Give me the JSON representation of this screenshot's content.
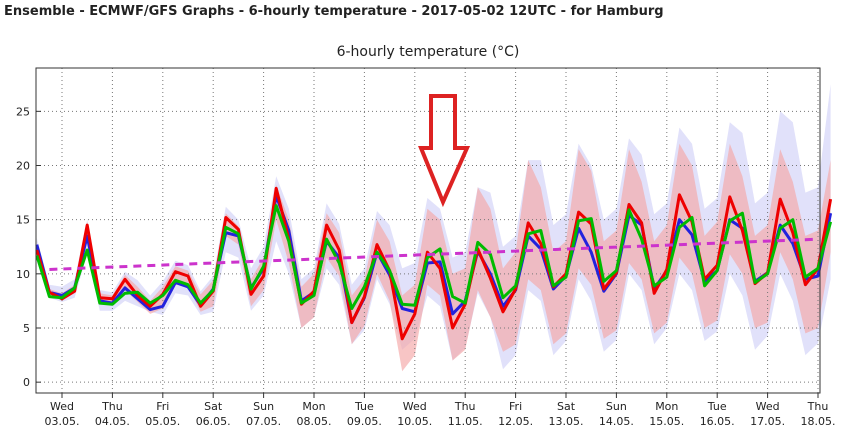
{
  "page": {
    "title": "Ensemble - ECMWF/GFS Graphs - 6-hourly temperature - 2017-05-02 12UTC - for Hamburg"
  },
  "colors": {
    "ecmwf": "#ee0000",
    "gfs": "#00bb00",
    "blue": "#2222dd",
    "climate": "#cc33cc",
    "band_red": "#f4a6a6",
    "band_blue": "#c9c9f5",
    "annotation_arrow": "#dd2222"
  },
  "chart_data": {
    "type": "line",
    "title": "6-hourly temperature (°C)",
    "xlabel": "",
    "ylabel": "",
    "ylim": [
      -1,
      29
    ],
    "yticks": [
      0,
      5,
      10,
      15,
      20,
      25
    ],
    "grid": true,
    "x_day_ticks": [
      {
        "weekday": "Wed",
        "date": "03.05."
      },
      {
        "weekday": "Thu",
        "date": "04.05."
      },
      {
        "weekday": "Fri",
        "date": "05.05."
      },
      {
        "weekday": "Sat",
        "date": "06.05."
      },
      {
        "weekday": "Sun",
        "date": "07.05."
      },
      {
        "weekday": "Mon",
        "date": "08.05."
      },
      {
        "weekday": "Tue",
        "date": "09.05."
      },
      {
        "weekday": "Wed",
        "date": "10.05."
      },
      {
        "weekday": "Thu",
        "date": "11.05."
      },
      {
        "weekday": "Fri",
        "date": "12.05."
      },
      {
        "weekday": "Sat",
        "date": "13.05."
      },
      {
        "weekday": "Sun",
        "date": "14.05."
      },
      {
        "weekday": "Mon",
        "date": "15.05."
      },
      {
        "weekday": "Tue",
        "date": "16.05."
      },
      {
        "weekday": "Wed",
        "date": "17.05."
      },
      {
        "weekday": "Thu",
        "date": "18.05."
      }
    ],
    "x_hours": [
      -12,
      -6,
      0,
      6,
      12,
      18,
      24,
      30,
      36,
      42,
      48,
      54,
      60,
      66,
      72,
      78,
      84,
      90,
      96,
      102,
      108,
      114,
      120,
      126,
      132,
      138,
      144,
      150,
      156,
      162,
      168,
      174,
      180,
      186,
      192,
      198,
      204,
      210,
      216,
      222,
      228,
      234,
      240,
      246,
      252,
      258,
      264,
      270,
      276,
      282,
      288,
      294,
      300,
      306,
      312,
      318,
      324,
      330,
      336,
      342,
      348,
      354,
      360,
      366
    ],
    "x_hours_unit": "hours after Wed 03.05. 00UTC",
    "series": [
      {
        "key": "blue",
        "values": [
          12.7,
          8.3,
          8.0,
          8.7,
          13.5,
          7.5,
          7.3,
          8.7,
          7.7,
          6.7,
          7.0,
          9.2,
          8.8,
          7.1,
          8.6,
          13.8,
          13.5,
          8.7,
          10.5,
          17.2,
          14.0,
          7.5,
          8.3,
          13.0,
          11.5,
          5.5,
          7.8,
          12.0,
          9.9,
          6.8,
          6.5,
          11.0,
          11.1,
          6.3,
          7.5,
          12.1,
          10.0,
          7.0,
          8.5,
          13.5,
          12.3,
          8.6,
          9.8,
          14.2,
          12.0,
          8.4,
          10.0,
          15.4,
          14.5,
          8.6,
          10.3,
          15.0,
          13.6,
          9.3,
          10.3,
          15.0,
          14.2,
          9.3,
          10.1,
          14.5,
          12.8,
          9.5,
          9.8,
          15.6
        ]
      },
      {
        "key": "ecmwf",
        "values": [
          12.2,
          8.3,
          7.7,
          8.4,
          14.5,
          7.8,
          7.7,
          9.5,
          8.0,
          7.0,
          8.1,
          10.2,
          9.8,
          7.0,
          8.4,
          15.2,
          14.1,
          8.1,
          9.8,
          17.9,
          13.2,
          7.2,
          8.4,
          14.5,
          12.2,
          5.5,
          7.9,
          12.7,
          10.3,
          4.0,
          6.3,
          12.0,
          10.5,
          5.0,
          7.2,
          12.3,
          9.6,
          6.5,
          8.6,
          14.7,
          12.8,
          8.8,
          10.0,
          15.7,
          14.6,
          8.6,
          10.1,
          16.4,
          14.7,
          8.2,
          10.4,
          17.3,
          14.8,
          9.5,
          10.8,
          17.1,
          14.0,
          9.1,
          10.1,
          16.9,
          13.8,
          9.0,
          10.5,
          16.9
        ]
      },
      {
        "key": "gfs",
        "values": [
          11.7,
          7.9,
          7.8,
          8.7,
          12.2,
          7.3,
          7.2,
          8.2,
          8.3,
          7.3,
          8.0,
          9.4,
          9.0,
          7.3,
          8.5,
          14.3,
          13.7,
          8.6,
          10.7,
          16.3,
          13.0,
          7.3,
          8.0,
          13.2,
          11.0,
          6.8,
          8.8,
          12.0,
          10.3,
          7.2,
          7.1,
          11.5,
          12.3,
          7.9,
          7.3,
          12.9,
          11.8,
          7.8,
          8.9,
          13.7,
          14.0,
          8.9,
          9.7,
          14.9,
          15.1,
          9.3,
          10.3,
          15.9,
          13.2,
          8.9,
          9.7,
          14.3,
          15.2,
          8.9,
          10.3,
          14.9,
          15.6,
          9.2,
          10.0,
          14.2,
          15.0,
          9.7,
          10.5,
          14.8
        ]
      },
      {
        "key": "climate",
        "values": [
          10.4,
          10.5,
          10.6,
          10.7,
          10.8,
          10.9,
          11.0,
          11.1,
          11.2,
          11.3,
          11.4,
          11.5,
          11.6,
          11.7,
          11.8,
          11.9,
          12.0,
          12.1,
          12.2,
          12.3,
          12.4,
          12.5,
          12.6,
          12.7,
          12.8,
          12.9,
          13.0,
          13.1,
          13.2
        ]
      }
    ],
    "climate_x_range_hours": [
      -6,
      360
    ],
    "bands": [
      {
        "key": "band_blue",
        "low": [
          11.5,
          7.8,
          7.4,
          7.8,
          11.8,
          6.6,
          6.6,
          7.5,
          7.0,
          6.5,
          6.2,
          8.2,
          8.0,
          6.2,
          6.5,
          12.0,
          11.5,
          6.6,
          8.0,
          13.0,
          10.0,
          5.0,
          6.0,
          10.5,
          9.0,
          3.5,
          4.8,
          9.5,
          7.2,
          3.0,
          4.0,
          8.0,
          7.0,
          2.0,
          3.2,
          8.2,
          6.0,
          1.2,
          2.5,
          8.5,
          7.5,
          2.5,
          3.8,
          9.5,
          7.5,
          2.8,
          3.9,
          10.0,
          8.5,
          3.5,
          5.0,
          10.0,
          8.5,
          3.8,
          4.7,
          10.0,
          8.0,
          3.0,
          4.3,
          10.0,
          7.5,
          2.5,
          3.6,
          9.5
        ],
        "high": [
          13.3,
          9.0,
          8.8,
          9.5,
          15.0,
          8.5,
          8.3,
          10.2,
          9.4,
          8.0,
          9.3,
          11.2,
          10.8,
          8.4,
          9.8,
          16.2,
          15.0,
          10.5,
          12.5,
          19.0,
          16.0,
          9.5,
          10.5,
          16.5,
          14.6,
          9.0,
          10.5,
          15.8,
          14.5,
          10.5,
          11.0,
          17.0,
          16.0,
          11.5,
          12.0,
          18.0,
          17.5,
          12.5,
          13.5,
          20.5,
          20.5,
          14.5,
          15.5,
          22.0,
          20.0,
          15.0,
          16.0,
          22.5,
          21.0,
          15.5,
          16.5,
          23.5,
          22.0,
          16.0,
          17.0,
          24.0,
          23.0,
          16.5,
          17.5,
          25.0,
          24.0,
          17.5,
          18.0,
          27.5
        ]
      },
      {
        "key": "band_red",
        "low": [
          12.0,
          8.1,
          7.6,
          8.2,
          13.0,
          7.2,
          7.1,
          8.5,
          7.4,
          6.3,
          6.8,
          9.0,
          8.8,
          6.5,
          7.0,
          13.5,
          12.7,
          7.0,
          8.5,
          15.0,
          11.0,
          5.0,
          6.0,
          11.5,
          9.8,
          3.5,
          5.2,
          10.0,
          7.5,
          1.0,
          2.5,
          9.0,
          8.0,
          2.0,
          3.0,
          8.5,
          6.0,
          2.8,
          3.5,
          9.5,
          8.5,
          3.5,
          4.5,
          10.5,
          9.0,
          4.0,
          4.8,
          11.0,
          9.5,
          4.5,
          5.5,
          11.5,
          10.0,
          5.0,
          5.7,
          11.8,
          10.0,
          5.0,
          5.5,
          12.0,
          9.5,
          4.5,
          5.0,
          12.0
        ],
        "high": [
          12.6,
          8.6,
          8.2,
          9.0,
          14.8,
          8.2,
          8.0,
          9.9,
          8.8,
          7.5,
          8.8,
          10.7,
          10.3,
          8.1,
          9.4,
          15.6,
          14.4,
          9.5,
          11.5,
          18.2,
          15.0,
          8.8,
          10.0,
          15.6,
          13.8,
          8.0,
          9.5,
          15.0,
          13.0,
          8.0,
          9.0,
          16.0,
          15.0,
          10.0,
          10.5,
          18.0,
          16.0,
          10.5,
          12.0,
          20.5,
          18.0,
          12.0,
          13.0,
          21.5,
          19.5,
          13.0,
          14.0,
          21.5,
          18.5,
          13.0,
          14.5,
          22.0,
          20.0,
          13.5,
          14.8,
          22.0,
          19.0,
          13.5,
          14.5,
          21.5,
          18.5,
          13.5,
          14.0,
          20.5
        ]
      }
    ]
  }
}
